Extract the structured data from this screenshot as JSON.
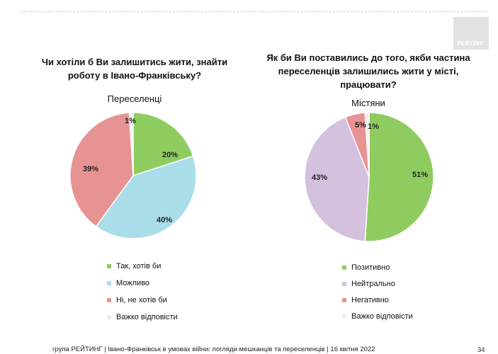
{
  "brand": "РЕЙТИНГ",
  "footer": "група РЕЙТИНГ  | Івано-Франківськ в умовах війни: погляди мешканців та переселенців | 16 квітня 2022",
  "page_number": "34",
  "chart_data": [
    {
      "type": "pie",
      "title": "Чи хотіли б Ви залишитись жити, знайти роботу в Івано-Франківську?",
      "subtitle": "Переселенці",
      "slices": [
        {
          "label": "Так, хотів би",
          "value": 20,
          "display": "20%",
          "color": "#8fcc5f"
        },
        {
          "label": "Можливо",
          "value": 40,
          "display": "40%",
          "color": "#a9dde9"
        },
        {
          "label": "Ні, не хотів би",
          "value": 39,
          "display": "39%",
          "color": "#e89393"
        },
        {
          "label": "Важко відповісти",
          "value": 1,
          "display": "1%",
          "color": "#efefef"
        }
      ]
    },
    {
      "type": "pie",
      "title": "Як би Ви поставились до того, якби частина переселенців залишились жити у місті, працювати?",
      "subtitle": "Містяни",
      "slices": [
        {
          "label": "Позитивно",
          "value": 51,
          "display": "51%",
          "color": "#8fcc5f"
        },
        {
          "label": "Нейтрально",
          "value": 43,
          "display": "43%",
          "color": "#d4c1de"
        },
        {
          "label": "Негативно",
          "value": 5,
          "display": "5%",
          "color": "#e89393"
        },
        {
          "label": "Важко відповісти",
          "value": 1,
          "display": "1%",
          "color": "#efefef"
        }
      ]
    }
  ]
}
